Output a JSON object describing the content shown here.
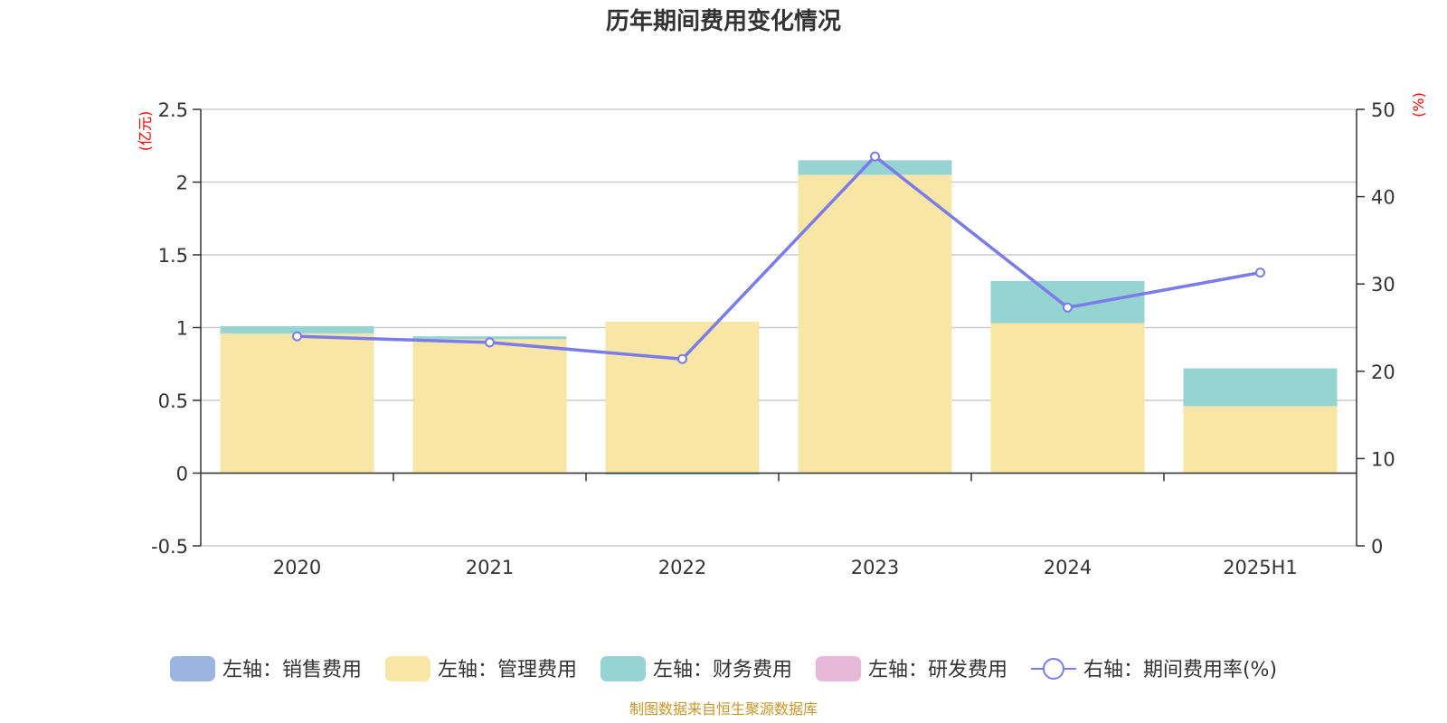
{
  "chart_data": {
    "type": "bar",
    "title": "历年期间费用变化情况",
    "left_unit": "(亿元)",
    "right_unit": "(%)",
    "categories": [
      "2020",
      "2021",
      "2022",
      "2023",
      "2024",
      "2025H1"
    ],
    "ylim_left": [
      -0.5,
      2.5
    ],
    "yticks_left": [
      "2.5",
      "2",
      "1.5",
      "1",
      "0.5",
      "0",
      "-0.5"
    ],
    "ylim_right": [
      0,
      50
    ],
    "yticks_right": [
      "50",
      "40",
      "30",
      "20",
      "10",
      "0"
    ],
    "series": [
      {
        "name": "左轴：销售费用",
        "axis": "left",
        "type": "bar",
        "color": "#9bb5e0",
        "values": [
          0,
          0,
          0,
          0,
          0,
          0
        ]
      },
      {
        "name": "左轴：管理费用",
        "axis": "left",
        "type": "bar",
        "color": "#f7e6a6",
        "values": [
          0.96,
          0.92,
          1.04,
          2.05,
          1.03,
          0.46
        ]
      },
      {
        "name": "左轴：财务费用",
        "axis": "left",
        "type": "bar",
        "color": "#96d3d3",
        "values": [
          0.05,
          0.02,
          -0.01,
          0.1,
          0.29,
          0.26
        ]
      },
      {
        "name": "左轴：研发费用",
        "axis": "left",
        "type": "bar",
        "color": "#e8b8d8",
        "values": [
          0,
          0,
          0,
          0,
          0,
          0
        ]
      },
      {
        "name": "右轴：期间费用率(%)",
        "axis": "right",
        "type": "line",
        "color": "#7b7bea",
        "values": [
          24.0,
          23.3,
          21.4,
          44.6,
          27.3,
          31.3
        ]
      }
    ],
    "grid": true,
    "legend_position": "bottom"
  },
  "footer": {
    "source": "制图数据来自恒生聚源数据库"
  }
}
